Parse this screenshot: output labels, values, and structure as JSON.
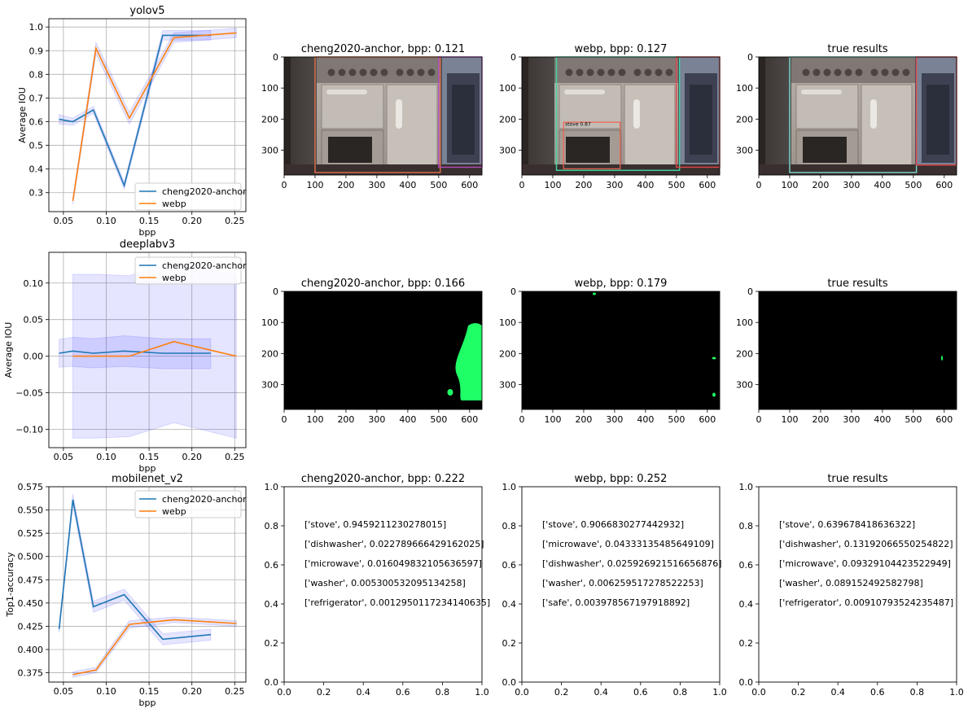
{
  "chart_data": [
    {
      "type": "line",
      "title": "yolov5",
      "xlabel": "bpp",
      "ylabel": "Average IOU",
      "xlim": [
        0.033,
        0.263
      ],
      "ylim": [
        0.22,
        1.035
      ],
      "xticks": [
        "0.05",
        "0.10",
        "0.15",
        "0.20",
        "0.25"
      ],
      "yticks": [
        "0.3",
        "0.4",
        "0.5",
        "0.6",
        "0.7",
        "0.8",
        "0.9",
        "1.0"
      ],
      "xtick_values": [
        0.05,
        0.1,
        0.15,
        0.2,
        0.25
      ],
      "ytick_values": [
        0.3,
        0.4,
        0.5,
        0.6,
        0.7,
        0.8,
        0.9,
        1.0
      ],
      "grid": true,
      "legend_position": "lower-right",
      "series": [
        {
          "name": "cheng2020-anchor",
          "color": "#1f77b4",
          "x": [
            0.045,
            0.061,
            0.085,
            0.121,
            0.166,
            0.222
          ],
          "y": [
            0.61,
            0.6,
            0.65,
            0.33,
            0.965,
            0.965
          ],
          "band": [
            0.02,
            0.015,
            0.015,
            0.015,
            0.02,
            0.02
          ]
        },
        {
          "name": "webp",
          "color": "#ff7f0e",
          "x": [
            0.061,
            0.088,
            0.127,
            0.179,
            0.252
          ],
          "y": [
            0.265,
            0.91,
            0.615,
            0.955,
            0.975
          ],
          "band": [
            0.015,
            0.025,
            0.025,
            0.02,
            0.02
          ]
        }
      ]
    },
    {
      "type": "line",
      "title": "deeplabv3",
      "xlabel": "bpp",
      "ylabel": "Average IOU",
      "xlim": [
        0.033,
        0.263
      ],
      "ylim": [
        -0.125,
        0.142
      ],
      "xticks": [
        "0.05",
        "0.10",
        "0.15",
        "0.20",
        "0.25"
      ],
      "yticks": [
        "−0.10",
        "−0.05",
        "0.00",
        "0.05",
        "0.10"
      ],
      "xtick_values": [
        0.05,
        0.1,
        0.15,
        0.2,
        0.25
      ],
      "ytick_values": [
        -0.1,
        -0.05,
        0.0,
        0.05,
        0.1
      ],
      "grid": true,
      "legend_position": "upper-right",
      "series": [
        {
          "name": "cheng2020-anchor",
          "color": "#1f77b4",
          "x": [
            0.045,
            0.061,
            0.085,
            0.121,
            0.166,
            0.222
          ],
          "y": [
            0.004,
            0.007,
            0.004,
            0.007,
            0.004,
            0.004
          ],
          "lower": [
            -0.015,
            -0.014,
            -0.016,
            -0.014,
            -0.017,
            -0.017
          ],
          "upper": [
            0.023,
            0.026,
            0.024,
            0.028,
            0.024,
            0.024
          ]
        },
        {
          "name": "webp",
          "color": "#ff7f0e",
          "x": [
            0.061,
            0.088,
            0.127,
            0.179,
            0.252
          ],
          "y": [
            0.0,
            0.0,
            0.0,
            0.02,
            0.0
          ],
          "lower": [
            -0.112,
            -0.112,
            -0.11,
            -0.091,
            -0.112
          ],
          "upper": [
            0.112,
            0.112,
            0.11,
            0.13,
            0.112
          ]
        }
      ]
    },
    {
      "type": "line",
      "title": "mobilenet_v2",
      "xlabel": "bpp",
      "ylabel": "Top1-accuracy",
      "xlim": [
        0.033,
        0.263
      ],
      "ylim": [
        0.365,
        0.575
      ],
      "xticks": [
        "0.05",
        "0.10",
        "0.15",
        "0.20",
        "0.25"
      ],
      "yticks": [
        "0.375",
        "0.400",
        "0.425",
        "0.450",
        "0.475",
        "0.500",
        "0.525",
        "0.550",
        "0.575"
      ],
      "xtick_values": [
        0.05,
        0.1,
        0.15,
        0.2,
        0.25
      ],
      "ytick_values": [
        0.375,
        0.4,
        0.425,
        0.45,
        0.475,
        0.5,
        0.525,
        0.55,
        0.575
      ],
      "grid": true,
      "legend_position": "upper-right",
      "series": [
        {
          "name": "cheng2020-anchor",
          "color": "#1f77b4",
          "x": [
            0.045,
            0.061,
            0.085,
            0.121,
            0.166,
            0.222
          ],
          "y": [
            0.422,
            0.561,
            0.446,
            0.459,
            0.411,
            0.416
          ],
          "band": [
            0.004,
            0.006,
            0.006,
            0.006,
            0.006,
            0.006
          ]
        },
        {
          "name": "webp",
          "color": "#ff7f0e",
          "x": [
            0.061,
            0.088,
            0.127,
            0.179,
            0.252
          ],
          "y": [
            0.373,
            0.378,
            0.427,
            0.432,
            0.428
          ],
          "band": [
            0.003,
            0.003,
            0.004,
            0.003,
            0.003
          ]
        }
      ]
    }
  ],
  "panels": [
    {
      "title": "cheng2020-anchor, bpp: 0.121",
      "kind": "photo",
      "xticks": [
        "0",
        "100",
        "200",
        "300",
        "400",
        "500",
        "600"
      ],
      "yticks": [
        "0",
        "100",
        "200",
        "300"
      ]
    },
    {
      "title": "webp, bpp: 0.127",
      "kind": "photo",
      "xticks": [
        "0",
        "100",
        "200",
        "300",
        "400",
        "500",
        "600"
      ],
      "yticks": [
        "0",
        "100",
        "200",
        "300"
      ],
      "box_label": "stove 0.87"
    },
    {
      "title": "true results",
      "kind": "photo",
      "xticks": [
        "0",
        "100",
        "200",
        "300",
        "400",
        "500",
        "600"
      ],
      "yticks": [
        "0",
        "100",
        "200",
        "300"
      ]
    },
    {
      "title": "cheng2020-anchor, bpp: 0.166",
      "kind": "mask",
      "xticks": [
        "0",
        "100",
        "200",
        "300",
        "400",
        "500",
        "600"
      ],
      "yticks": [
        "0",
        "100",
        "200",
        "300"
      ]
    },
    {
      "title": "webp, bpp: 0.179",
      "kind": "mask",
      "xticks": [
        "0",
        "100",
        "200",
        "300",
        "400",
        "500",
        "600"
      ],
      "yticks": [
        "0",
        "100",
        "200",
        "300"
      ]
    },
    {
      "title": "true results",
      "kind": "mask",
      "xticks": [
        "0",
        "100",
        "200",
        "300",
        "400",
        "500",
        "600"
      ],
      "yticks": [
        "0",
        "100",
        "200",
        "300"
      ]
    },
    {
      "title": "cheng2020-anchor, bpp: 0.222",
      "kind": "text",
      "xticks": [
        "0.0",
        "0.2",
        "0.4",
        "0.6",
        "0.8",
        "1.0"
      ],
      "yticks": [
        "0.0",
        "0.2",
        "0.4",
        "0.6",
        "0.8",
        "1.0"
      ],
      "lines": [
        "['stove', 0.9459211230278015]",
        "['dishwasher', 0.022789666429162025]",
        "['microwave', 0.016049832105636597]",
        "['washer', 0.005300532095134258]",
        "['refrigerator', 0.0012950117234140635]"
      ]
    },
    {
      "title": "webp, bpp: 0.252",
      "kind": "text",
      "xticks": [
        "0.0",
        "0.2",
        "0.4",
        "0.6",
        "0.8",
        "1.0"
      ],
      "yticks": [
        "0.0",
        "0.2",
        "0.4",
        "0.6",
        "0.8",
        "1.0"
      ],
      "lines": [
        "['stove', 0.9066830277442932]",
        "['microwave', 0.04333135485649109]",
        "['dishwasher', 0.025926921516656876]",
        "['washer', 0.006259517278522253]",
        "['safe', 0.003978567197918892]"
      ]
    },
    {
      "title": "true results",
      "kind": "text",
      "xticks": [
        "0.0",
        "0.2",
        "0.4",
        "0.6",
        "0.8",
        "1.0"
      ],
      "yticks": [
        "0.0",
        "0.2",
        "0.4",
        "0.6",
        "0.8",
        "1.0"
      ],
      "lines": [
        "['stove', 0.639678418636322]",
        "['dishwasher', 0.13192066550254822]",
        "['microwave', 0.09329104423522949]",
        "['washer', 0.089152492582798]",
        "['refrigerator', 0.00910793524235487]"
      ]
    }
  ],
  "colors": {
    "cheng": "#1f77b4",
    "webp": "#ff7f0e",
    "band": "#0000ff",
    "mask": "#1fff66",
    "grid": "#b0b0b0"
  }
}
